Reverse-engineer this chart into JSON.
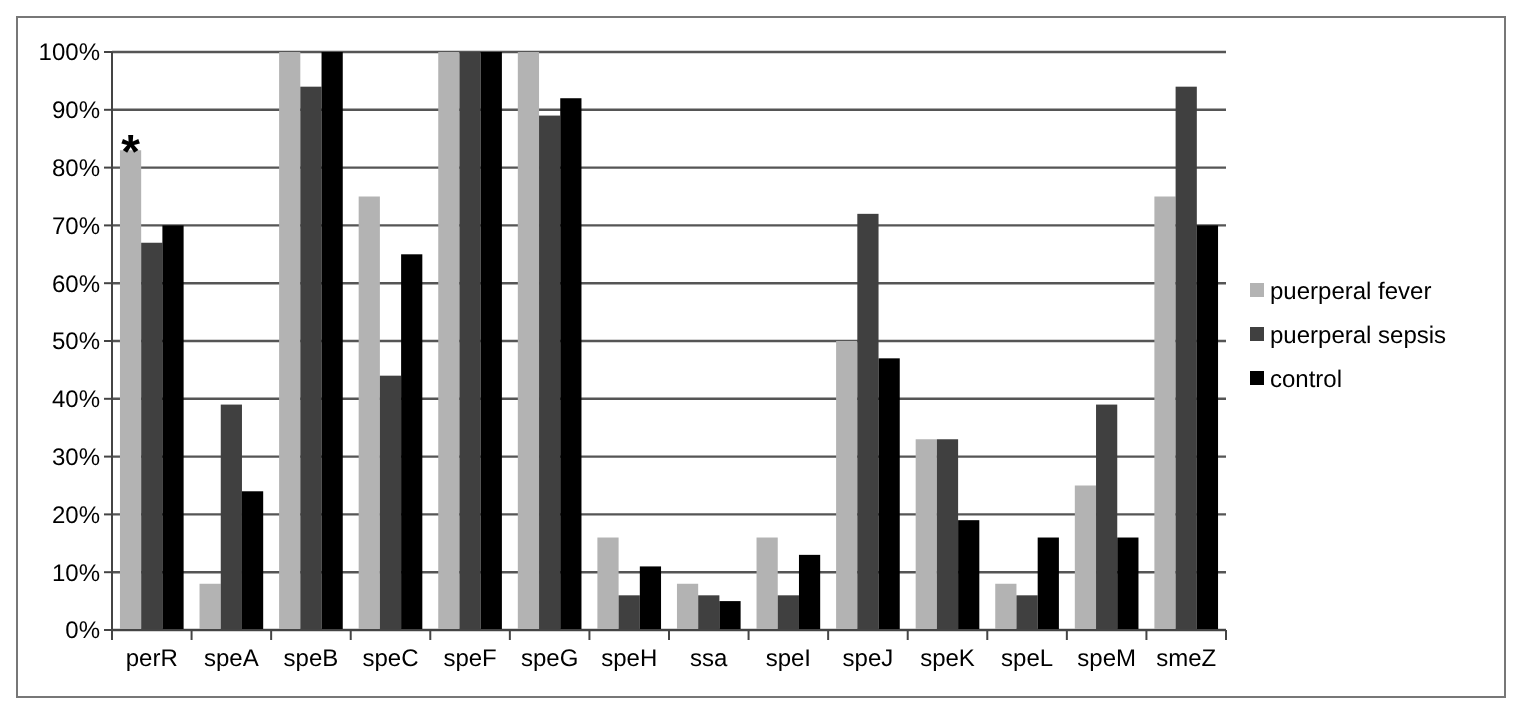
{
  "chart_data": {
    "type": "bar",
    "categories": [
      "perR",
      "speA",
      "speB",
      "speC",
      "speF",
      "speG",
      "speH",
      "ssa",
      "speI",
      "speJ",
      "speK",
      "speL",
      "speM",
      "smeZ"
    ],
    "series": [
      {
        "name": "puerperal fever",
        "color": "#b3b3b3",
        "values": [
          83,
          8,
          100,
          75,
          100,
          100,
          16,
          8,
          16,
          50,
          33,
          8,
          25,
          75
        ]
      },
      {
        "name": "puerperal sepsis",
        "color": "#404040",
        "values": [
          67,
          39,
          94,
          44,
          100,
          89,
          6,
          6,
          6,
          72,
          33,
          6,
          39,
          94
        ]
      },
      {
        "name": "control",
        "color": "#000000",
        "values": [
          70,
          24,
          100,
          65,
          100,
          92,
          11,
          5,
          13,
          47,
          19,
          16,
          16,
          70
        ]
      }
    ],
    "ylim": [
      0,
      100
    ],
    "yticks": [
      {
        "value": 0,
        "label": "0%"
      },
      {
        "value": 10,
        "label": "10%"
      },
      {
        "value": 20,
        "label": "20%"
      },
      {
        "value": 30,
        "label": "30%"
      },
      {
        "value": 40,
        "label": "40%"
      },
      {
        "value": 50,
        "label": "50%"
      },
      {
        "value": 60,
        "label": "60%"
      },
      {
        "value": 70,
        "label": "70%"
      },
      {
        "value": 80,
        "label": "80%"
      },
      {
        "value": 90,
        "label": "90%"
      },
      {
        "value": 100,
        "label": "100%"
      }
    ],
    "grid": "y",
    "legend": "right",
    "annotations": [
      "*"
    ]
  }
}
